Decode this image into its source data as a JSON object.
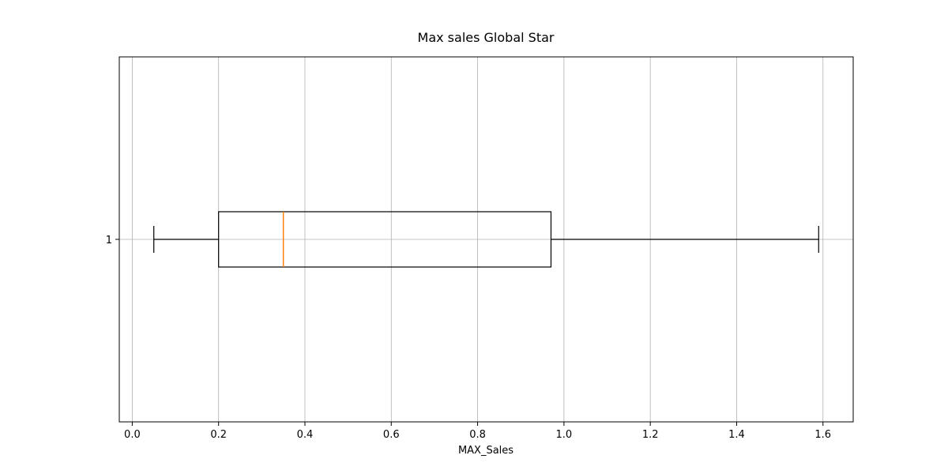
{
  "chart_data": {
    "type": "boxplot",
    "orientation": "horizontal",
    "title": "Max sales Global Star",
    "xlabel": "MAX_Sales",
    "ylabel": "",
    "xlim": [
      -0.03,
      1.67
    ],
    "x_ticks": [
      0.0,
      0.2,
      0.4,
      0.6,
      0.8,
      1.0,
      1.2,
      1.4,
      1.6
    ],
    "x_tick_labels": [
      "0.0",
      "0.2",
      "0.4",
      "0.6",
      "0.8",
      "1.0",
      "1.2",
      "1.4",
      "1.6"
    ],
    "y_tick_labels": [
      "1"
    ],
    "grid": true,
    "boxes": [
      {
        "category": "1",
        "whisker_low": 0.05,
        "q1": 0.2,
        "median": 0.35,
        "q3": 0.97,
        "whisker_high": 1.59
      }
    ],
    "colors": {
      "box": "#000000",
      "median": "#ff7f0e",
      "grid": "#b0b0b0"
    }
  }
}
